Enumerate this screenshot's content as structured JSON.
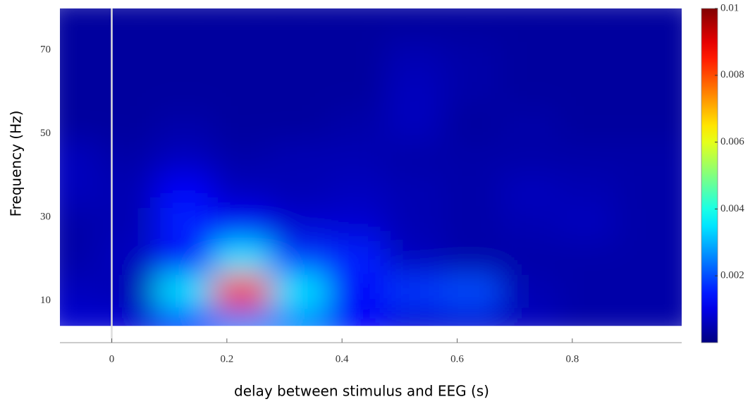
{
  "chart_data": {
    "type": "heatmap",
    "xlabel": "delay between stimulus and EEG (s)",
    "ylabel": "Frequency (Hz)",
    "xlim": [
      -0.09,
      0.99
    ],
    "ylim": [
      0,
      80
    ],
    "data_ylim": [
      4,
      80
    ],
    "xticks": [
      0,
      0.2,
      0.4,
      0.6,
      0.8
    ],
    "yticks": [
      10,
      30,
      50,
      70
    ],
    "vline": 0,
    "x": [
      -0.05,
      0.05,
      0.15,
      0.25,
      0.35,
      0.45,
      0.55,
      0.65,
      0.75,
      0.85,
      0.95
    ],
    "y": [
      6,
      14,
      22,
      30,
      38,
      46,
      54,
      62,
      70,
      78
    ],
    "z": [
      [
        0.0008,
        0.0008,
        0.0015,
        0.0025,
        0.0025,
        0.0012,
        0.0008,
        0.0008,
        0.0006,
        0.0004,
        0.0004
      ],
      [
        0.0006,
        0.0005,
        0.0035,
        0.0085,
        0.0035,
        0.0012,
        0.0018,
        0.002,
        0.0005,
        0.0004,
        0.0004
      ],
      [
        0.0004,
        0.0006,
        0.0012,
        0.0035,
        0.0018,
        0.0016,
        0.0006,
        0.0004,
        0.0004,
        0.0004,
        0.0004
      ],
      [
        0.0004,
        0.0005,
        0.0016,
        0.0012,
        0.0008,
        0.0008,
        0.0005,
        0.0004,
        0.0005,
        0.0006,
        0.0004
      ],
      [
        0.0006,
        0.0005,
        0.0012,
        0.0006,
        0.0005,
        0.0006,
        0.0005,
        0.0004,
        0.0006,
        0.0005,
        0.0004
      ],
      [
        0.0006,
        0.0004,
        0.0006,
        0.0004,
        0.0005,
        0.0005,
        0.0004,
        0.0004,
        0.0004,
        0.0004,
        0.0004
      ],
      [
        0.0003,
        0.0003,
        0.0004,
        0.0003,
        0.0003,
        0.0004,
        0.0006,
        0.0003,
        0.0004,
        0.0003,
        0.0003
      ],
      [
        0.0003,
        0.0003,
        0.0003,
        0.0003,
        0.0003,
        0.0003,
        0.0006,
        0.0004,
        0.0003,
        0.0003,
        0.0003
      ],
      [
        0.0003,
        0.0003,
        0.0003,
        0.0003,
        0.0003,
        0.0003,
        0.0005,
        0.0004,
        0.0003,
        0.0003,
        0.0003
      ],
      [
        0.0003,
        0.0003,
        0.0003,
        0.0003,
        0.0003,
        0.0003,
        0.0003,
        0.0003,
        0.0003,
        0.0003,
        0.0003
      ]
    ],
    "colormap": "jet",
    "zlim": [
      0,
      0.01
    ],
    "zticks": [
      0.002,
      0.004,
      0.006,
      0.008,
      0.01
    ]
  }
}
